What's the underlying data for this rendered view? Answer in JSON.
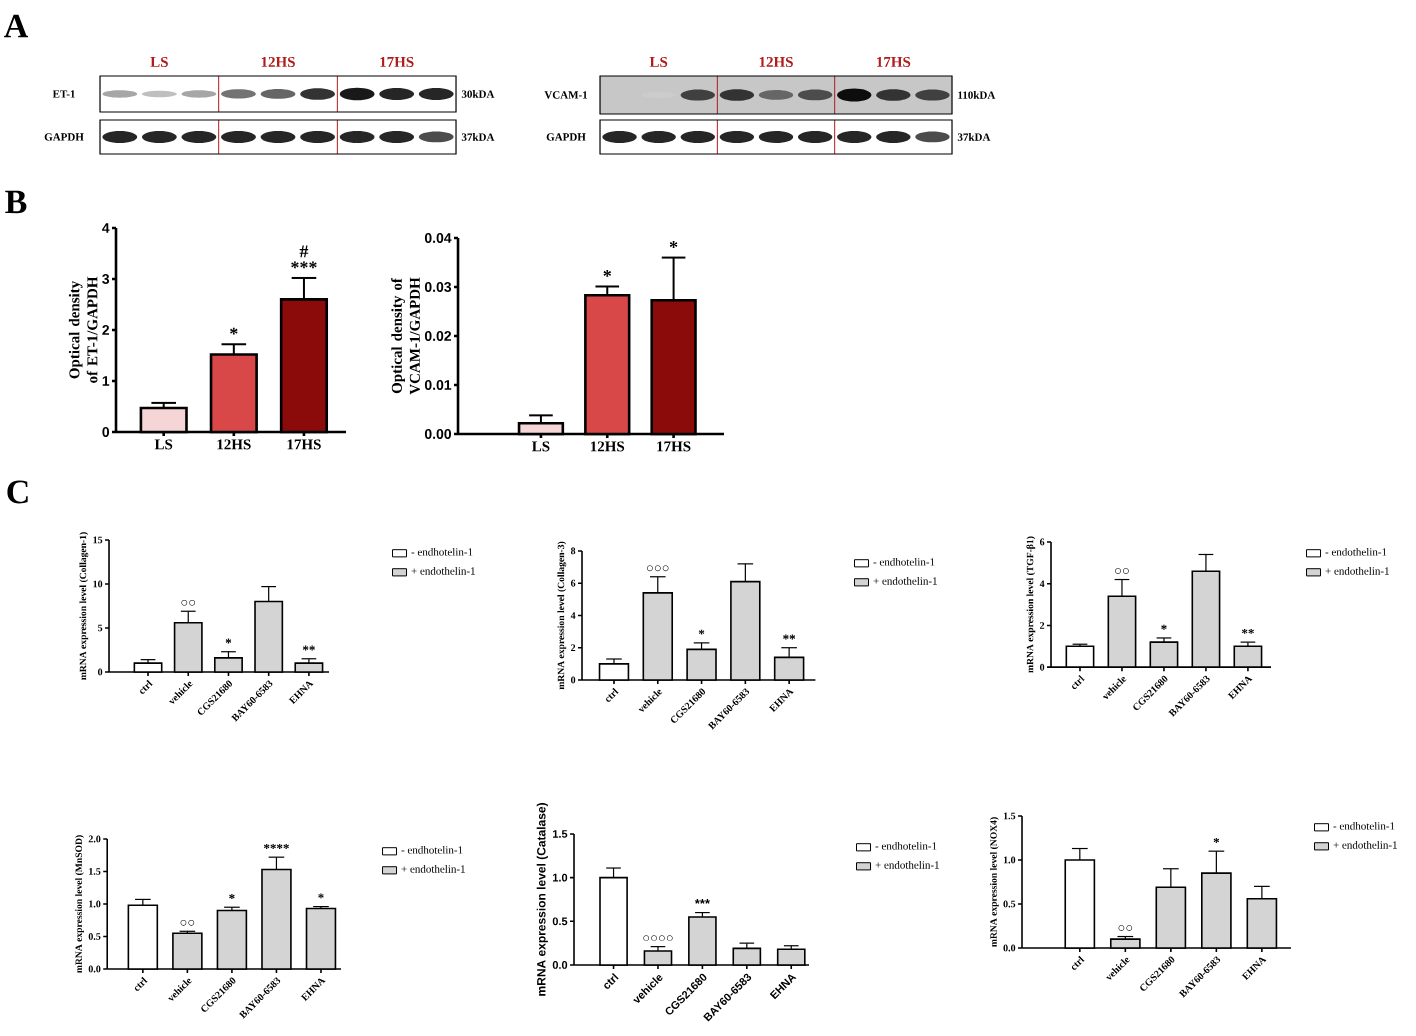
{
  "chart_data": [
    {
      "type": "other",
      "categories": [
        "LS",
        "12HS",
        "17HS"
      ],
      "y_categories": [
        "ET-1",
        "GAPDH"
      ],
      "y2_categories": [
        "30kDA",
        "37kDA"
      ],
      "annotations": [
        "A"
      ]
    },
    {
      "type": "other",
      "categories": [
        "LS",
        "12HS",
        "17HS"
      ],
      "y_categories": [
        "VCAM-1",
        "GAPDH"
      ],
      "y2_categories": [
        "110kDA",
        "37kDA"
      ]
    },
    {
      "type": "bar",
      "ylabel": "Optical density of ET-1/GAPDH",
      "categories": [
        "LS",
        "12HS",
        "17HS"
      ],
      "values": [
        0.47,
        1.52,
        2.6
      ],
      "colors": [
        "#f5d5d5",
        "#d94848",
        "#8b0a0a"
      ],
      "errors": [
        [
          0.47,
          0.57
        ],
        [
          1.52,
          1.72
        ],
        [
          2.6,
          3.02
        ]
      ],
      "ylim": [
        0,
        4
      ],
      "yticks": [
        0,
        1,
        2,
        3,
        4
      ],
      "annotations": [
        "B",
        {
          "text": "*",
          "x": "12HS",
          "y": 1.72
        },
        {
          "text": "***",
          "x": "17HS",
          "y": 3.02
        },
        {
          "text": "#",
          "x": "17HS",
          "y": 3.02
        }
      ]
    },
    {
      "type": "bar",
      "ylabel": "Optical density of VCAM-1/GAPDH",
      "categories": [
        "LS",
        "12HS",
        "17HS"
      ],
      "values": [
        0.0022,
        0.0283,
        0.0273
      ],
      "colors": [
        "#f5d5d5",
        "#d94848",
        "#8b0a0a"
      ],
      "errors": [
        [
          0.0022,
          0.0038
        ],
        [
          0.0283,
          0.0301
        ],
        [
          0.0273,
          0.036
        ]
      ],
      "ylim": [
        0,
        0.04
      ],
      "yticks": [
        {
          "value": 0,
          "label": "0.00"
        },
        {
          "value": 0.01,
          "label": "0.01"
        },
        {
          "value": 0.02,
          "label": "0.02"
        },
        {
          "value": 0.03,
          "label": "0.03"
        },
        {
          "value": 0.04,
          "label": "0.04"
        }
      ],
      "annotations": [
        {
          "text": "*",
          "x": "12HS",
          "y": 0.0301
        },
        {
          "text": "*",
          "x": "17HS",
          "y": 0.036
        }
      ]
    },
    {
      "type": "bar",
      "ylabel": "mRNA expression level (Collagen-1)",
      "categories": [
        "ctrl",
        "vehicle",
        "CGS21680",
        "BAY60-6583",
        "EHNA"
      ],
      "series": [
        {
          "name": "- endhotelin-1",
          "color": "#ffffff",
          "values": [
            1.0,
            null,
            null,
            null,
            null
          ],
          "errors": [
            [
              1.0,
              1.4
            ],
            null,
            null,
            null,
            null
          ]
        },
        {
          "name": "+ endothelin-1",
          "color": "#d4d4d4",
          "values": [
            null,
            5.6,
            1.6,
            8.0,
            1.0
          ],
          "errors": [
            null,
            [
              5.6,
              6.9
            ],
            [
              1.6,
              2.3
            ],
            [
              8.0,
              9.7
            ],
            [
              1.0,
              1.5
            ]
          ]
        }
      ],
      "ylim": [
        0,
        15
      ],
      "yticks": [
        0,
        5,
        10,
        15
      ],
      "legend": "top right",
      "annotations": [
        "C",
        {
          "text": "○○",
          "x": "vehicle",
          "y": 6.9
        },
        {
          "text": "*",
          "x": "CGS21680",
          "y": 2.3
        },
        {
          "text": "**",
          "x": "EHNA",
          "y": 1.5
        }
      ]
    },
    {
      "type": "bar",
      "ylabel": "mRNA expression level (Collagen-3)",
      "categories": [
        "ctrl",
        "vehicle",
        "CGS21680",
        "BAY60-6583",
        "EHNA"
      ],
      "series": [
        {
          "name": "- endhotelin-1",
          "color": "#ffffff",
          "values": [
            1.0,
            null,
            null,
            null,
            null
          ],
          "errors": [
            [
              1.0,
              1.3
            ],
            null,
            null,
            null,
            null
          ]
        },
        {
          "name": "+ endothelin-1",
          "color": "#d4d4d4",
          "values": [
            null,
            5.4,
            1.9,
            6.1,
            1.4
          ],
          "errors": [
            null,
            [
              5.4,
              6.4
            ],
            [
              1.9,
              2.3
            ],
            [
              6.1,
              7.2
            ],
            [
              1.4,
              2.0
            ]
          ]
        }
      ],
      "ylim": [
        0,
        8
      ],
      "yticks": [
        0,
        2,
        4,
        6,
        8
      ],
      "legend": "top right",
      "annotations": [
        {
          "text": "○○○",
          "x": "vehicle",
          "y": 6.4
        },
        {
          "text": "*",
          "x": "CGS21680",
          "y": 2.3
        },
        {
          "text": "**",
          "x": "EHNA",
          "y": 2.0
        }
      ]
    },
    {
      "type": "bar",
      "ylabel": "mRNA expression level (TGF-β1)",
      "categories": [
        "ctrl",
        "vehicle",
        "CGS21680",
        "BAY60-6583",
        "EHNA"
      ],
      "series": [
        {
          "name": "- endothelin-1",
          "color": "#ffffff",
          "values": [
            1.0,
            null,
            null,
            null,
            null
          ],
          "errors": [
            [
              1.0,
              1.1
            ],
            null,
            null,
            null,
            null
          ]
        },
        {
          "name": "+ endothelin-1",
          "color": "#d4d4d4",
          "values": [
            null,
            3.4,
            1.2,
            4.6,
            1.0
          ],
          "errors": [
            null,
            [
              3.4,
              4.2
            ],
            [
              1.2,
              1.4
            ],
            [
              4.6,
              5.4
            ],
            [
              1.0,
              1.2
            ]
          ]
        }
      ],
      "ylim": [
        0,
        6
      ],
      "yticks": [
        0,
        2,
        4,
        6
      ],
      "legend": "top right",
      "annotations": [
        {
          "text": "○○",
          "x": "vehicle",
          "y": 4.2
        },
        {
          "text": "*",
          "x": "CGS21680",
          "y": 1.4
        },
        {
          "text": "**",
          "x": "EHNA",
          "y": 1.2
        }
      ]
    },
    {
      "type": "bar",
      "ylabel": "mRNA expression level (MnSOD)",
      "categories": [
        "ctrl",
        "vehicle",
        "CGS21680",
        "BAY60-6583",
        "EHNA"
      ],
      "series": [
        {
          "name": "- endhotelin-1",
          "color": "#ffffff",
          "values": [
            0.98,
            null,
            null,
            null,
            null
          ],
          "errors": [
            [
              0.98,
              1.07
            ],
            null,
            null,
            null,
            null
          ]
        },
        {
          "name": "+ endothelin-1",
          "color": "#d4d4d4",
          "values": [
            null,
            0.55,
            0.9,
            1.53,
            0.93
          ],
          "errors": [
            null,
            [
              0.55,
              0.58
            ],
            [
              0.9,
              0.95
            ],
            [
              1.53,
              1.72
            ],
            [
              0.93,
              0.96
            ]
          ]
        }
      ],
      "ylim": [
        0,
        2
      ],
      "yticks": [
        {
          "value": 0,
          "label": "0.0"
        },
        {
          "value": 0.5,
          "label": "0.5"
        },
        {
          "value": 1,
          "label": "1.0"
        },
        {
          "value": 1.5,
          "label": "1.5"
        },
        {
          "value": 2,
          "label": "2.0"
        }
      ],
      "legend": "top right",
      "annotations": [
        {
          "text": "○○",
          "x": "vehicle",
          "y": 0.58
        },
        {
          "text": "*",
          "x": "CGS21680",
          "y": 0.95
        },
        {
          "text": "****",
          "x": "BAY60-6583",
          "y": 1.72
        },
        {
          "text": "*",
          "x": "EHNA",
          "y": 0.96
        }
      ]
    },
    {
      "type": "bar",
      "ylabel": "mRNA expression level (Catalase)",
      "categories": [
        "ctrl",
        "vehicle",
        "CGS21680",
        "BAY60-6583",
        "EHNA"
      ],
      "series": [
        {
          "name": "- endhotelin-1",
          "color": "#ffffff",
          "values": [
            1.0,
            null,
            null,
            null,
            null
          ],
          "errors": [
            [
              1.0,
              1.11
            ],
            null,
            null,
            null,
            null
          ]
        },
        {
          "name": "+ endothelin-1",
          "color": "#d4d4d4",
          "values": [
            null,
            0.16,
            0.55,
            0.19,
            0.18
          ],
          "errors": [
            null,
            [
              0.16,
              0.21
            ],
            [
              0.55,
              0.6
            ],
            [
              0.19,
              0.25
            ],
            [
              0.18,
              0.22
            ]
          ]
        }
      ],
      "ylim": [
        0,
        1.5
      ],
      "yticks": [
        {
          "value": 0,
          "label": "0.0"
        },
        {
          "value": 0.5,
          "label": "0.5"
        },
        {
          "value": 1,
          "label": "1.0"
        },
        {
          "value": 1.5,
          "label": "1.5"
        }
      ],
      "legend": "top right",
      "annotations": [
        {
          "text": "○○○○",
          "x": "vehicle",
          "y": 0.21
        },
        {
          "text": "***",
          "x": "CGS21680",
          "y": 0.6
        }
      ]
    },
    {
      "type": "bar",
      "ylabel": "mRNA expression level (NOX4)",
      "categories": [
        "ctrl",
        "vehicle",
        "CGS21680",
        "BAY60-6583",
        "EHNA"
      ],
      "series": [
        {
          "name": "- endhotelin-1",
          "color": "#ffffff",
          "values": [
            1.0,
            null,
            null,
            null,
            null
          ],
          "errors": [
            [
              1.0,
              1.13
            ],
            null,
            null,
            null,
            null
          ]
        },
        {
          "name": "+ endothelin-1",
          "color": "#d4d4d4",
          "values": [
            null,
            0.1,
            0.69,
            0.85,
            0.56
          ],
          "errors": [
            null,
            [
              0.1,
              0.13
            ],
            [
              0.69,
              0.9
            ],
            [
              0.85,
              1.1
            ],
            [
              0.56,
              0.7
            ]
          ]
        }
      ],
      "ylim": [
        0,
        1.5
      ],
      "yticks": [
        {
          "value": 0,
          "label": "0.0"
        },
        {
          "value": 0.5,
          "label": "0.5"
        },
        {
          "value": 1,
          "label": "1.0"
        },
        {
          "value": 1.5,
          "label": "1.5"
        }
      ],
      "legend": "top right",
      "annotations": [
        {
          "text": "○○",
          "x": "vehicle",
          "y": 0.13
        },
        {
          "text": "*",
          "x": "BAY60-6583",
          "y": 1.1
        }
      ]
    }
  ]
}
